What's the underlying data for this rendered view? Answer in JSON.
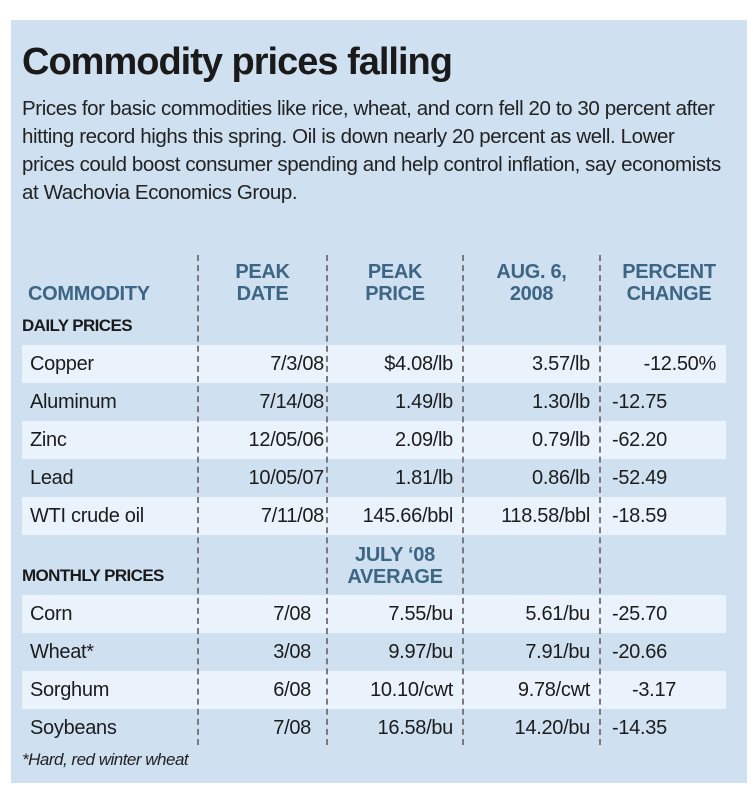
{
  "title": "Commodity prices falling",
  "intro": "Prices for basic commodities like rice, wheat, and corn fell 20 to 30 percent after hitting record highs this spring. Oil is down nearly 20 percent as well. Lower prices could boost consumer spending and help control inflation, say economists at Wachovia Economics Group.",
  "columns": {
    "commodity": "COMMODITY",
    "peak_date": [
      "PEAK",
      "DATE"
    ],
    "peak_price": [
      "PEAK",
      "PRICE"
    ],
    "aug6": [
      "AUG. 6,",
      "2008"
    ],
    "pct": [
      "PERCENT",
      "CHANGE"
    ]
  },
  "daily": {
    "label": "DAILY PRICES",
    "rows": [
      {
        "name": "Copper",
        "peak_date": "7/3/08",
        "peak_price": "$4.08/lb",
        "current": "3.57/lb",
        "change": "-12.50%"
      },
      {
        "name": "Aluminum",
        "peak_date": "7/14/08",
        "peak_price": "1.49/lb",
        "current": "1.30/lb",
        "change": "-12.75"
      },
      {
        "name": "Zinc",
        "peak_date": "12/05/06",
        "peak_price": "2.09/lb",
        "current": "0.79/lb",
        "change": "-62.20"
      },
      {
        "name": "Lead",
        "peak_date": "10/05/07",
        "peak_price": "1.81/lb",
        "current": "0.86/lb",
        "change": "-52.49"
      },
      {
        "name": "WTI crude oil",
        "peak_date": "7/11/08",
        "peak_price": "145.66/bbl",
        "current": "118.58/bbl",
        "change": "-18.59"
      }
    ]
  },
  "monthly": {
    "label": "MONTHLY PRICES",
    "col_header": [
      "JULY ‘08",
      "AVERAGE"
    ],
    "rows": [
      {
        "name": "Corn",
        "peak_date": "7/08",
        "peak_price": "7.55/bu",
        "current": "5.61/bu",
        "change": "-25.70"
      },
      {
        "name": "Wheat*",
        "peak_date": "3/08",
        "peak_price": "9.97/bu",
        "current": "7.91/bu",
        "change": "-20.66"
      },
      {
        "name": "Sorghum",
        "peak_date": "6/08",
        "peak_price": "10.10/cwt",
        "current": "9.78/cwt",
        "change": "-3.17"
      },
      {
        "name": "Soybeans",
        "peak_date": "7/08",
        "peak_price": "16.58/bu",
        "current": "14.20/bu",
        "change": "-14.35"
      }
    ]
  },
  "footnote": "*Hard, red winter wheat",
  "colors": {
    "panel": "#cfe0f1",
    "stripe": "#eaf2fb",
    "header_text": "#3d6584"
  }
}
